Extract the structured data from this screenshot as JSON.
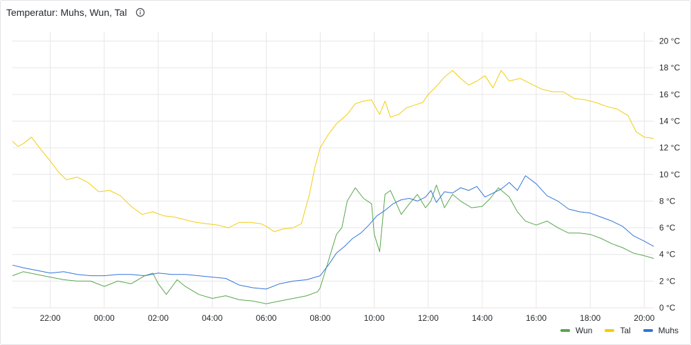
{
  "panel": {
    "title": "Temperatur: Muhs, Wun, Tal",
    "info_icon": "info-circle-icon"
  },
  "chart_data": {
    "type": "line",
    "y_unit": "°C",
    "ylim": [
      0,
      20.7
    ],
    "y_ticks": [
      0,
      2,
      4,
      6,
      8,
      10,
      12,
      14,
      16,
      18,
      20
    ],
    "y_tick_labels": [
      "0 °C",
      "2 °C",
      "4 °C",
      "6 °C",
      "8 °C",
      "10 °C",
      "12 °C",
      "14 °C",
      "16 °C",
      "18 °C",
      "20 °C"
    ],
    "x_range_hours": [
      20.6,
      44.35
    ],
    "x_ticks": [
      22,
      24,
      26,
      28,
      30,
      32,
      34,
      36,
      38,
      40,
      42,
      44
    ],
    "x_tick_labels": [
      "22:00",
      "00:00",
      "02:00",
      "04:00",
      "06:00",
      "08:00",
      "10:00",
      "12:00",
      "14:00",
      "16:00",
      "18:00",
      "20:00"
    ],
    "grid": true,
    "legend_position": "bottom-right",
    "series": [
      {
        "name": "Wun",
        "color": "#56a64b",
        "x": [
          20.6,
          21.0,
          21.5,
          22.0,
          22.5,
          23.0,
          23.5,
          24.0,
          24.5,
          25.0,
          25.5,
          25.8,
          26.0,
          26.3,
          26.7,
          27.0,
          27.5,
          28.0,
          28.5,
          29.0,
          29.5,
          30.0,
          30.5,
          31.0,
          31.5,
          31.9,
          32.0,
          32.3,
          32.6,
          32.8,
          33.0,
          33.3,
          33.6,
          33.9,
          34.0,
          34.2,
          34.4,
          34.6,
          35.0,
          35.3,
          35.6,
          35.9,
          36.1,
          36.3,
          36.6,
          36.9,
          37.2,
          37.6,
          38.0,
          38.3,
          38.6,
          39.0,
          39.3,
          39.6,
          40.0,
          40.4,
          40.8,
          41.2,
          41.6,
          42.0,
          42.4,
          42.8,
          43.2,
          43.6,
          44.0,
          44.35
        ],
        "y": [
          2.4,
          2.7,
          2.5,
          2.3,
          2.1,
          2.0,
          2.0,
          1.6,
          2.0,
          1.8,
          2.4,
          2.6,
          1.8,
          1.0,
          2.1,
          1.6,
          1.0,
          0.7,
          0.9,
          0.6,
          0.5,
          0.3,
          0.5,
          0.7,
          0.9,
          1.2,
          1.5,
          3.5,
          5.5,
          6.0,
          8.0,
          9.0,
          8.2,
          7.8,
          5.5,
          4.2,
          8.5,
          8.8,
          7.0,
          7.8,
          8.5,
          7.5,
          8.0,
          9.2,
          7.5,
          8.5,
          8.0,
          7.5,
          7.6,
          8.2,
          9.0,
          8.3,
          7.2,
          6.5,
          6.2,
          6.5,
          6.0,
          5.6,
          5.6,
          5.5,
          5.2,
          4.8,
          4.5,
          4.1,
          3.9,
          3.7
        ]
      },
      {
        "name": "Tal",
        "color": "#f2cc0c",
        "x": [
          20.6,
          20.8,
          21.0,
          21.3,
          21.6,
          22.0,
          22.3,
          22.6,
          23.0,
          23.4,
          23.8,
          24.2,
          24.6,
          25.0,
          25.4,
          25.8,
          26.2,
          26.6,
          27.0,
          27.4,
          27.8,
          28.2,
          28.6,
          29.0,
          29.4,
          29.8,
          30.0,
          30.3,
          30.6,
          31.0,
          31.3,
          31.6,
          31.8,
          32.0,
          32.3,
          32.6,
          33.0,
          33.3,
          33.6,
          33.9,
          34.0,
          34.2,
          34.4,
          34.6,
          34.9,
          35.2,
          35.5,
          35.8,
          36.0,
          36.3,
          36.6,
          36.9,
          37.2,
          37.5,
          37.8,
          38.1,
          38.4,
          38.7,
          39.0,
          39.4,
          39.8,
          40.2,
          40.6,
          41.0,
          41.4,
          41.8,
          42.2,
          42.6,
          43.0,
          43.4,
          43.7,
          44.0,
          44.35
        ],
        "y": [
          12.5,
          12.1,
          12.3,
          12.8,
          12.0,
          11.0,
          10.2,
          9.6,
          9.8,
          9.4,
          8.7,
          8.8,
          8.4,
          7.6,
          7.0,
          7.2,
          6.9,
          6.8,
          6.6,
          6.4,
          6.3,
          6.2,
          6.0,
          6.4,
          6.4,
          6.3,
          6.1,
          5.7,
          5.9,
          6.0,
          6.3,
          8.5,
          10.5,
          12.0,
          13.0,
          13.8,
          14.5,
          15.3,
          15.5,
          15.6,
          15.2,
          14.5,
          15.5,
          14.3,
          14.5,
          15.0,
          15.2,
          15.4,
          16.0,
          16.6,
          17.3,
          17.8,
          17.2,
          16.7,
          17.0,
          17.4,
          16.5,
          17.8,
          17.0,
          17.2,
          16.8,
          16.4,
          16.2,
          16.2,
          15.7,
          15.6,
          15.4,
          15.1,
          14.9,
          14.4,
          13.2,
          12.8,
          12.7
        ]
      },
      {
        "name": "Muhs",
        "color": "#3274d9",
        "x": [
          20.6,
          21.0,
          21.5,
          22.0,
          22.5,
          23.0,
          23.5,
          24.0,
          24.5,
          25.0,
          25.5,
          26.0,
          26.5,
          27.0,
          27.5,
          28.0,
          28.5,
          29.0,
          29.5,
          30.0,
          30.5,
          31.0,
          31.5,
          32.0,
          32.3,
          32.6,
          32.9,
          33.2,
          33.5,
          33.8,
          34.1,
          34.4,
          34.7,
          35.0,
          35.3,
          35.6,
          35.9,
          36.1,
          36.3,
          36.6,
          36.9,
          37.2,
          37.5,
          37.8,
          38.1,
          38.4,
          38.7,
          39.0,
          39.3,
          39.6,
          40.0,
          40.4,
          40.8,
          41.2,
          41.6,
          42.0,
          42.4,
          42.8,
          43.2,
          43.6,
          44.0,
          44.35
        ],
        "y": [
          3.2,
          3.0,
          2.8,
          2.6,
          2.7,
          2.5,
          2.4,
          2.4,
          2.5,
          2.5,
          2.4,
          2.6,
          2.5,
          2.5,
          2.4,
          2.3,
          2.2,
          1.7,
          1.5,
          1.4,
          1.8,
          2.0,
          2.1,
          2.4,
          3.2,
          4.1,
          4.6,
          5.2,
          5.6,
          6.2,
          6.9,
          7.3,
          7.8,
          8.1,
          8.2,
          8.0,
          8.3,
          8.8,
          7.9,
          8.7,
          8.6,
          9.0,
          8.8,
          9.1,
          8.3,
          8.6,
          8.9,
          9.4,
          8.8,
          9.9,
          9.3,
          8.4,
          8.0,
          7.4,
          7.2,
          7.1,
          6.8,
          6.5,
          6.1,
          5.4,
          5.0,
          4.6
        ]
      }
    ]
  }
}
